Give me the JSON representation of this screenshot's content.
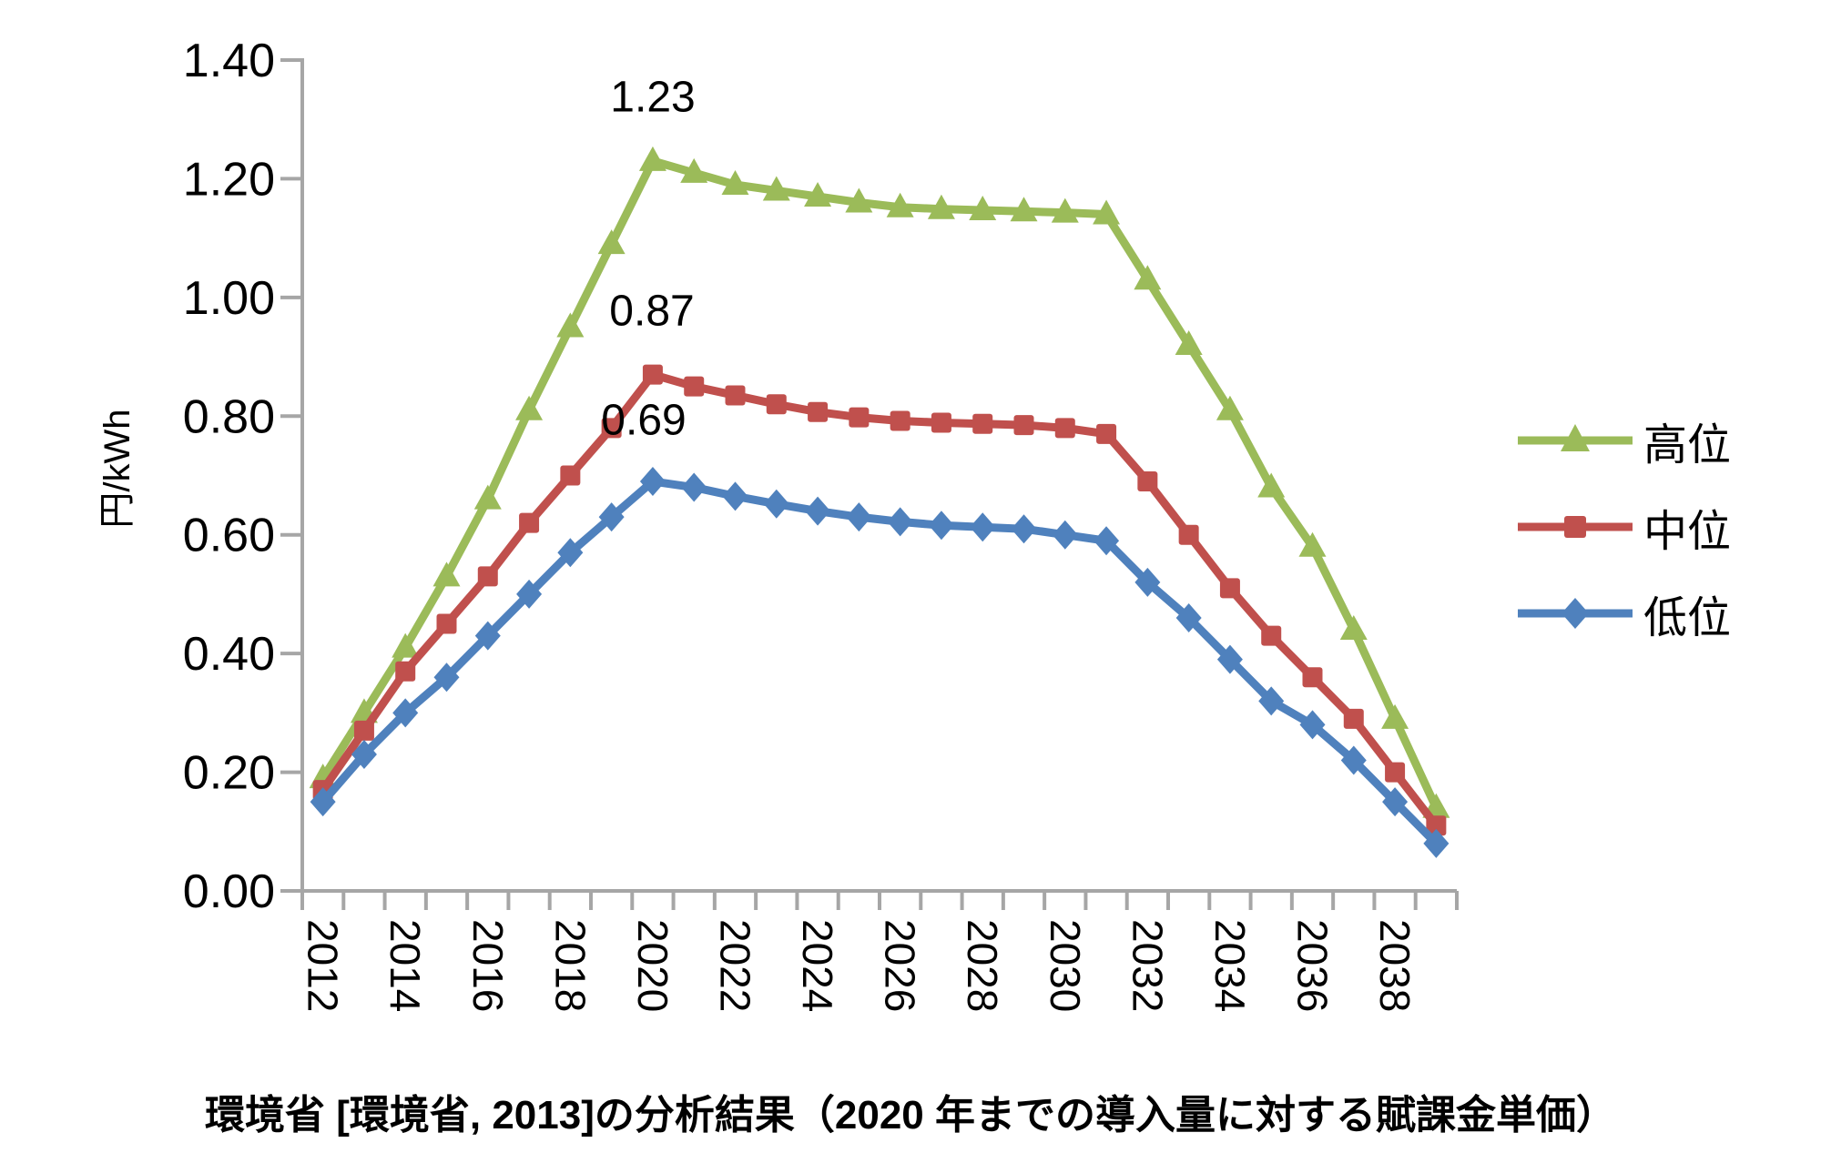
{
  "chart_data": {
    "type": "line",
    "title": "",
    "ylabel": "円/kWh",
    "xlabel": "",
    "ylim": [
      0.0,
      1.4
    ],
    "y_tick_step": 0.2,
    "y_tick_labels": [
      "1.40",
      "1.20",
      "1.00",
      "0.80",
      "0.60",
      "0.40",
      "0.20",
      "0.00"
    ],
    "x": [
      2012,
      2013,
      2014,
      2015,
      2016,
      2017,
      2018,
      2019,
      2020,
      2021,
      2022,
      2023,
      2024,
      2025,
      2026,
      2027,
      2028,
      2029,
      2030,
      2031,
      2032,
      2033,
      2034,
      2035,
      2036,
      2037,
      2038,
      2039
    ],
    "x_tick_labels": [
      "2012",
      "2014",
      "2016",
      "2018",
      "2020",
      "2022",
      "2024",
      "2026",
      "2028",
      "2030",
      "2032",
      "2034",
      "2036",
      "2038"
    ],
    "grid": false,
    "legend_position": "right",
    "axis_color": "#A6A6A6",
    "series": [
      {
        "id": "high",
        "name": "高位",
        "marker": "triangle",
        "color": "#9BBB59",
        "values": [
          0.19,
          0.3,
          0.41,
          0.53,
          0.66,
          0.81,
          0.95,
          1.09,
          1.23,
          1.21,
          1.19,
          1.18,
          1.17,
          1.16,
          1.152,
          1.149,
          1.147,
          1.145,
          1.143,
          1.14,
          1.03,
          0.92,
          0.81,
          0.68,
          0.58,
          0.44,
          0.29,
          0.14
        ]
      },
      {
        "id": "mid",
        "name": "中位",
        "marker": "square",
        "color": "#C0504D",
        "values": [
          0.17,
          0.27,
          0.37,
          0.45,
          0.53,
          0.62,
          0.7,
          0.78,
          0.87,
          0.85,
          0.835,
          0.82,
          0.807,
          0.798,
          0.792,
          0.789,
          0.787,
          0.785,
          0.78,
          0.77,
          0.69,
          0.6,
          0.51,
          0.43,
          0.36,
          0.29,
          0.2,
          0.11
        ]
      },
      {
        "id": "low",
        "name": "低位",
        "marker": "diamond",
        "color": "#4F81BD",
        "values": [
          0.15,
          0.23,
          0.3,
          0.36,
          0.43,
          0.5,
          0.57,
          0.63,
          0.69,
          0.68,
          0.665,
          0.652,
          0.64,
          0.63,
          0.622,
          0.616,
          0.613,
          0.61,
          0.6,
          0.59,
          0.52,
          0.46,
          0.39,
          0.32,
          0.28,
          0.22,
          0.15,
          0.08
        ]
      }
    ],
    "annotations": [
      {
        "text": "1.23",
        "series": "高位",
        "year": 2020,
        "value": 1.23
      },
      {
        "text": "0.87",
        "series": "中位",
        "year": 2020,
        "value": 0.87
      },
      {
        "text": "0.69",
        "series": "低位",
        "year": 2020,
        "value": 0.69
      }
    ]
  },
  "caption": "環境省 [環境省, 2013]の分析結果（2020 年までの導入量に対する賦課金単価）"
}
